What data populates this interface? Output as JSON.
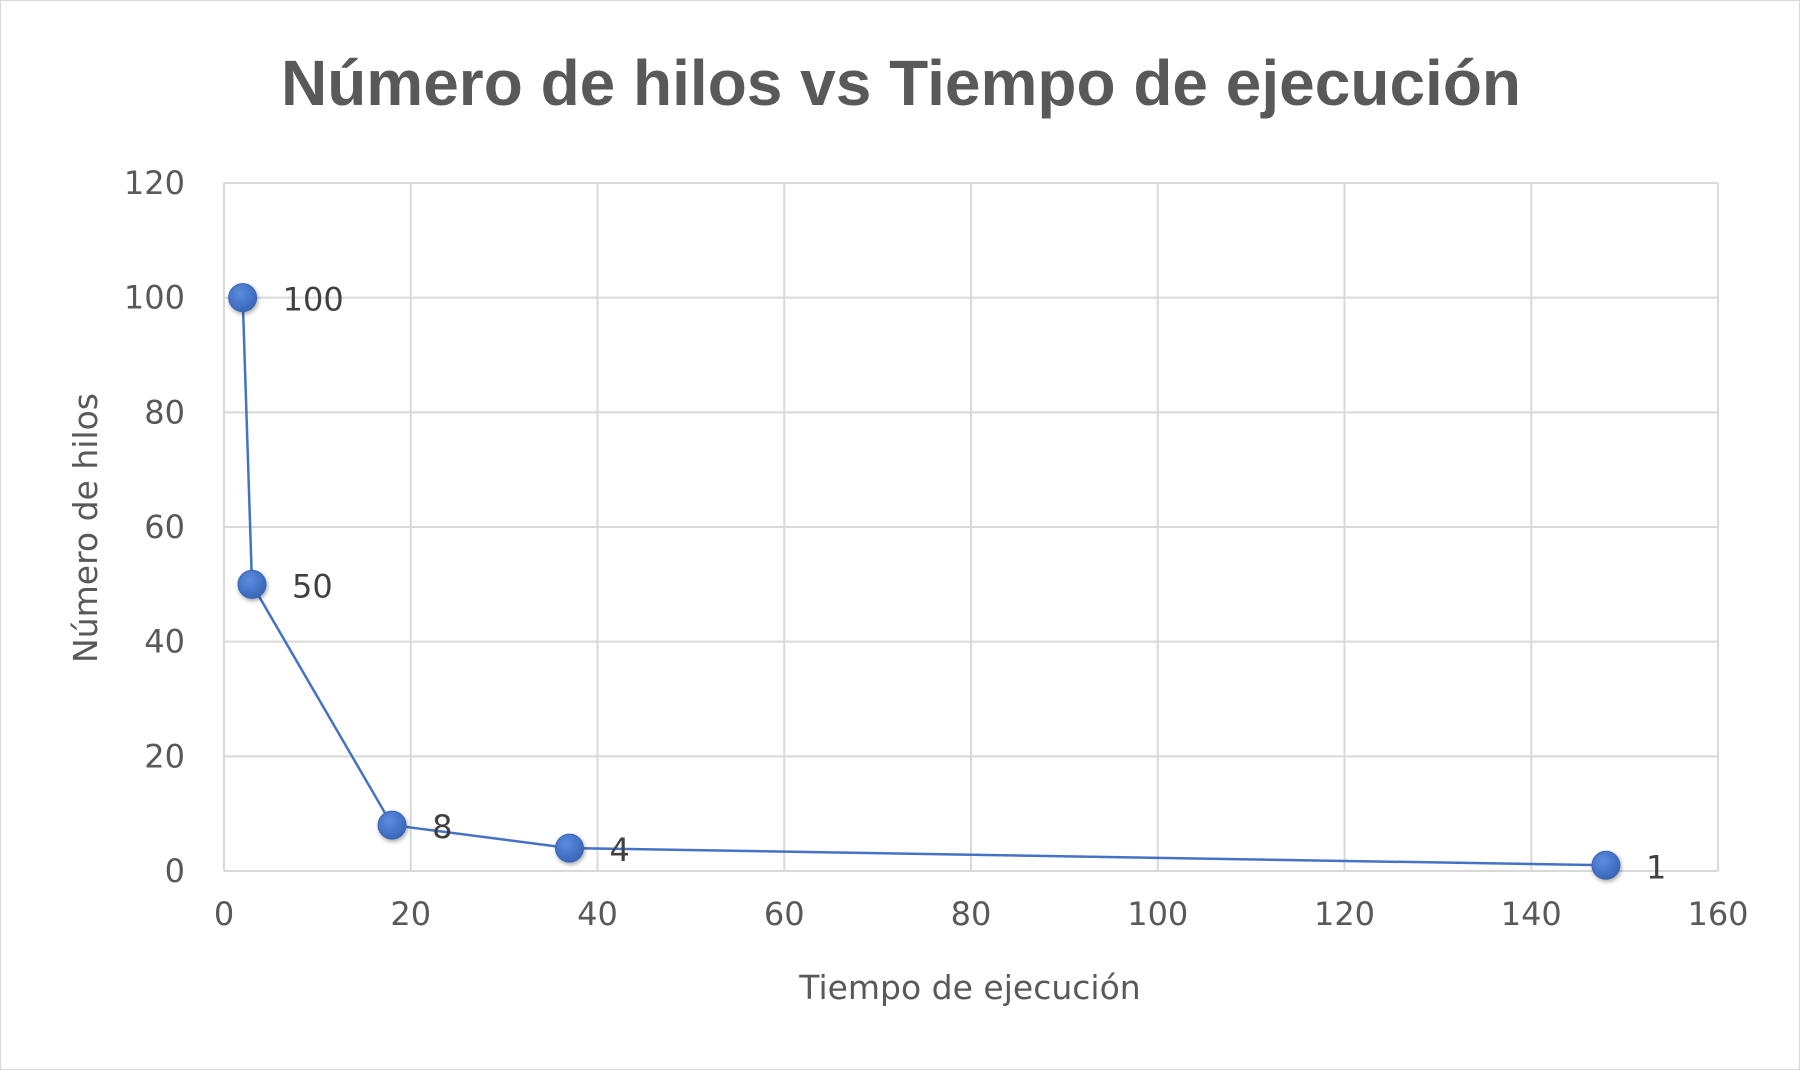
{
  "chart_data": {
    "type": "scatter",
    "title": "Número de hilos vs Tiempo de ejecución",
    "xlabel": "Tiempo de ejecución",
    "ylabel": "Número de hilos",
    "xlim": [
      0,
      160
    ],
    "ylim": [
      0,
      120
    ],
    "x_ticks": [
      0,
      20,
      40,
      60,
      80,
      100,
      120,
      140,
      160
    ],
    "y_ticks": [
      0,
      20,
      40,
      60,
      80,
      100,
      120
    ],
    "grid": true,
    "legend": "none",
    "series": [
      {
        "x": [
          2,
          3,
          18,
          37,
          148
        ],
        "y": [
          100,
          50,
          8,
          4,
          1
        ],
        "data_labels": [
          "100",
          "50",
          "8",
          "4",
          "1"
        ],
        "line": true,
        "markers": true
      }
    ],
    "colors": {
      "series": "#4472c4",
      "grid": "#d9d9d9",
      "text": "#595959"
    }
  }
}
